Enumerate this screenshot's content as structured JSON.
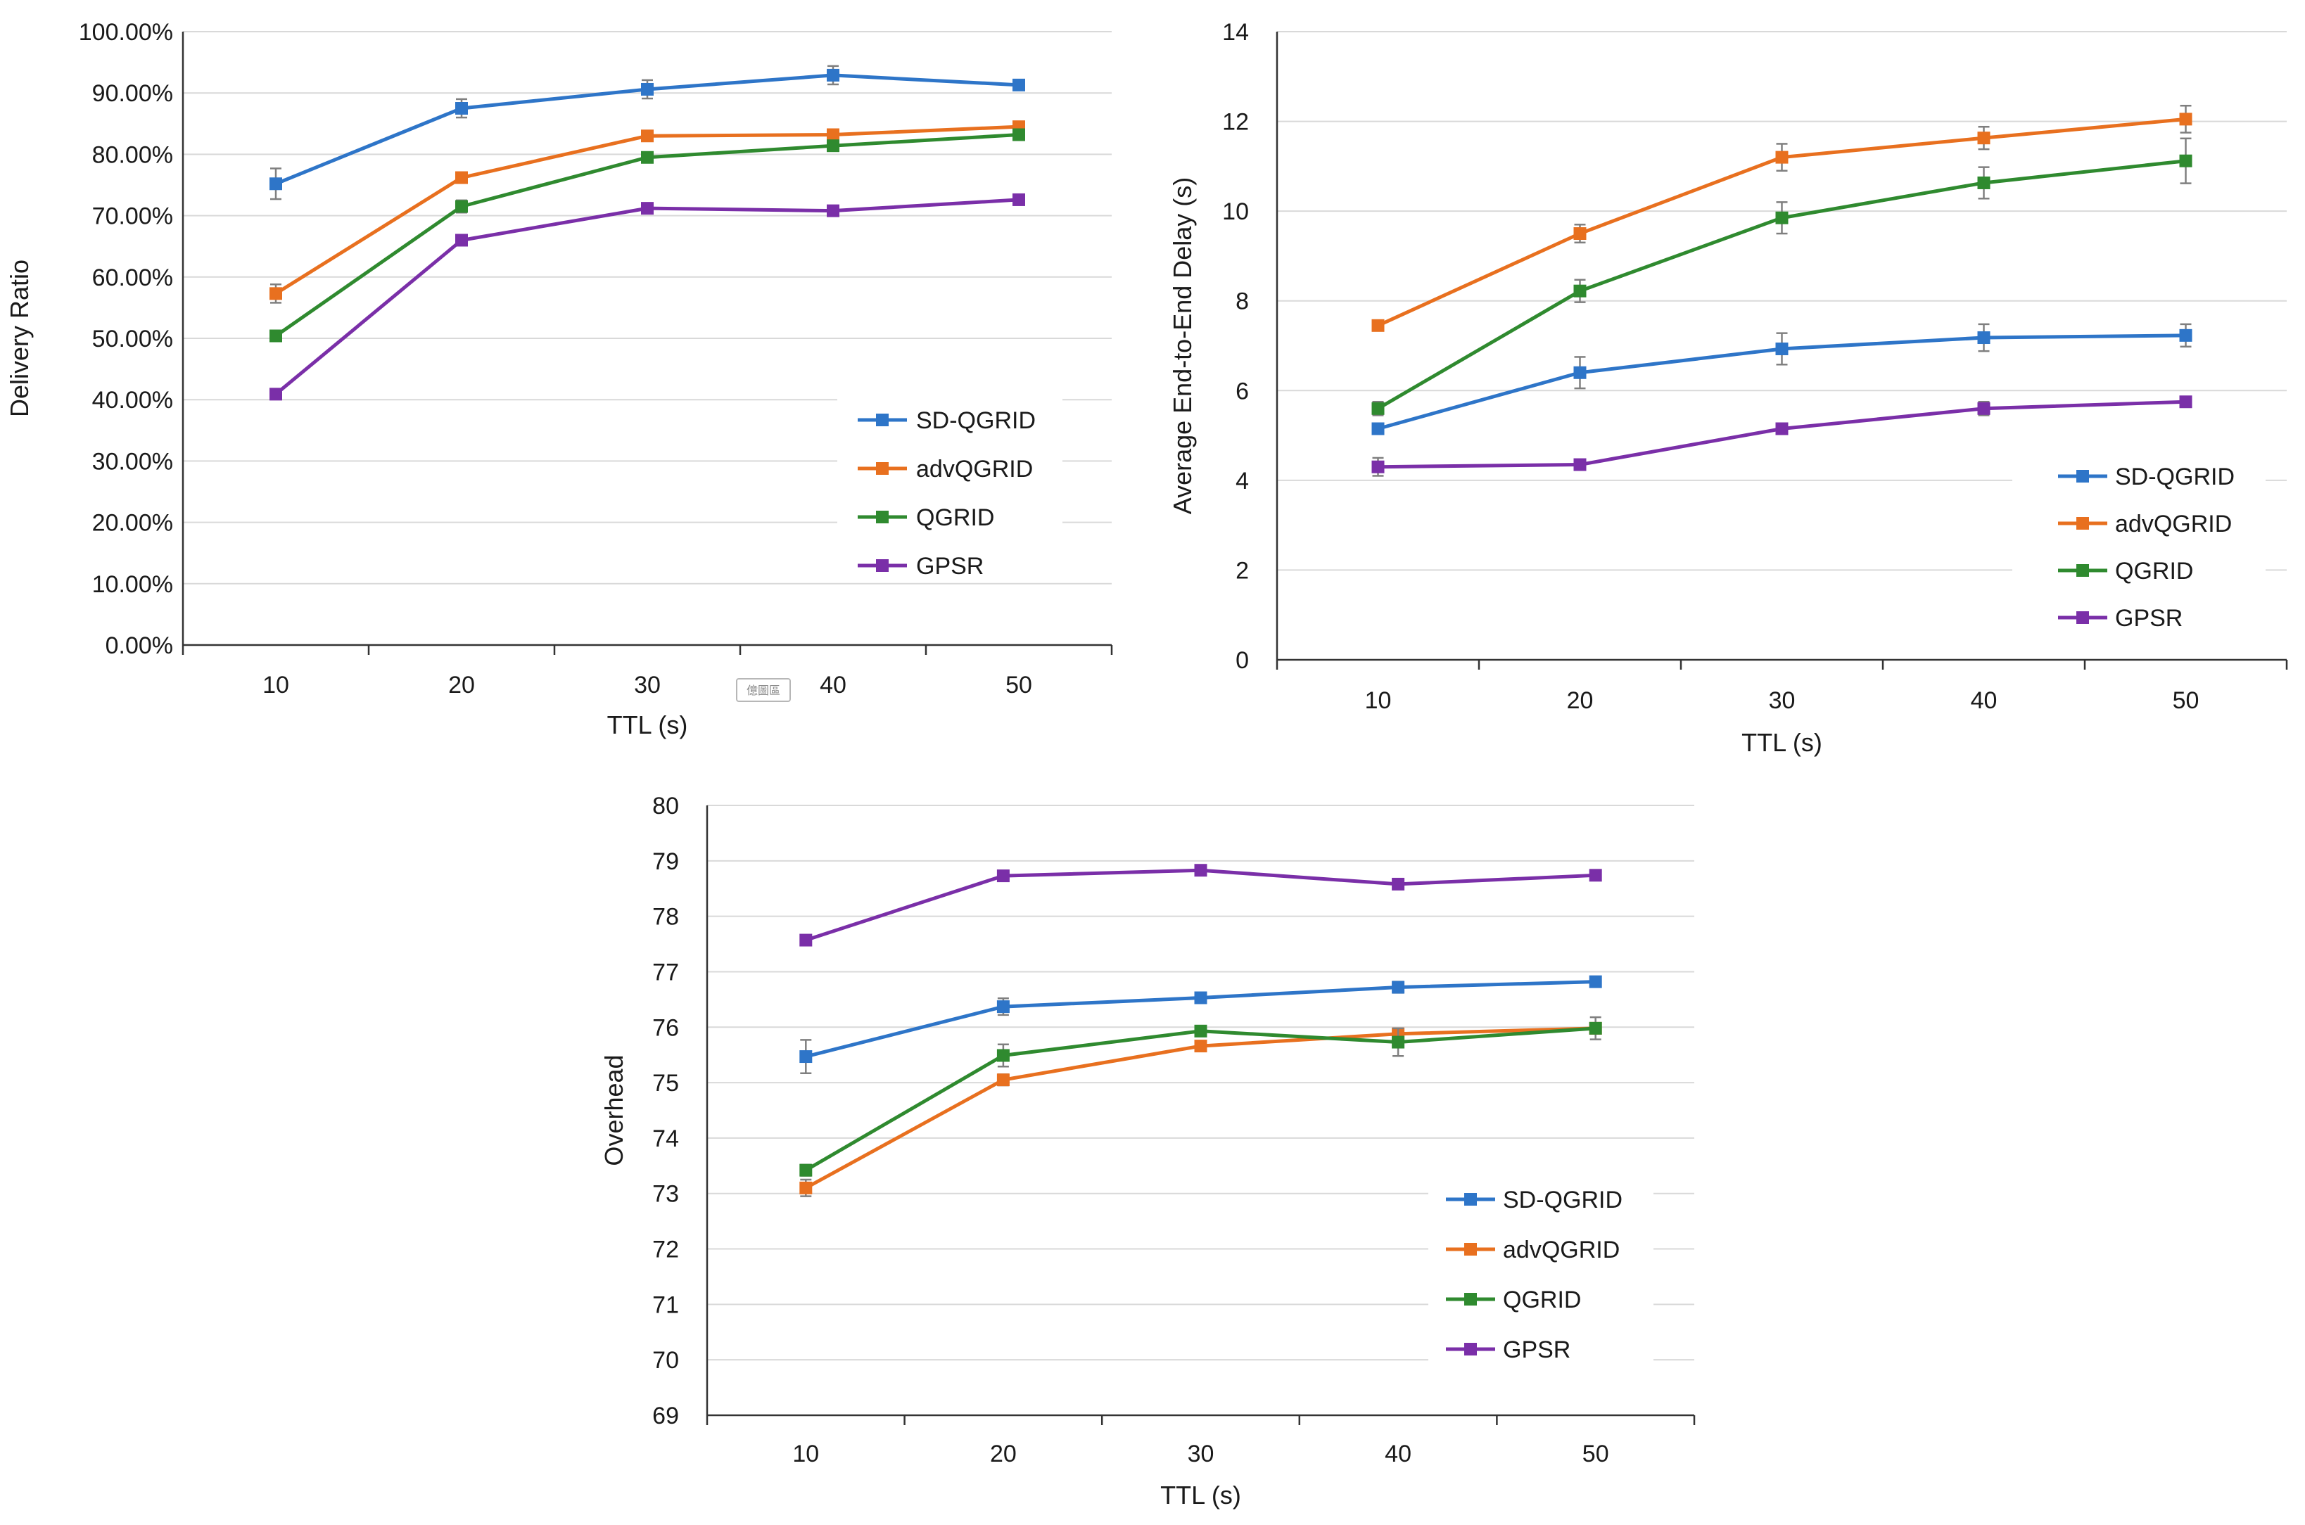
{
  "colors": {
    "SD-QGRID": "#2e75c8",
    "advQGRID": "#e8701f",
    "QGRID": "#2f8a2f",
    "GPSR": "#7a2fa8",
    "grid": "#d9d9d9",
    "axis": "#333333",
    "error_bar": "#7f7f7f"
  },
  "icons": {
    "legend_marker": "square-marker-icon"
  },
  "watermark": "億圖區",
  "chart_data": [
    {
      "type": "line",
      "title": "",
      "xlabel": "TTL (s)",
      "ylabel": "Delivery Ratio",
      "categories": [
        "10",
        "20",
        "30",
        "40",
        "50"
      ],
      "ylim": [
        0,
        100
      ],
      "yticks": [
        "0.00%",
        "10.00%",
        "20.00%",
        "30.00%",
        "40.00%",
        "50.00%",
        "60.00%",
        "70.00%",
        "80.00%",
        "90.00%",
        "100.00%"
      ],
      "grid": true,
      "legend_position": "bottom-right",
      "series": [
        {
          "name": "SD-QGRID",
          "values": [
            75.2,
            87.5,
            90.6,
            92.9,
            91.3
          ],
          "errors": [
            2.5,
            1.5,
            1.5,
            1.5,
            0.5
          ]
        },
        {
          "name": "advQGRID",
          "values": [
            57.3,
            76.2,
            83.0,
            83.2,
            84.5
          ],
          "errors": [
            1.5,
            0.5,
            0.5,
            0.5,
            0.5
          ]
        },
        {
          "name": "QGRID",
          "values": [
            50.4,
            71.5,
            79.5,
            81.4,
            83.2
          ],
          "errors": [
            0.5,
            1.0,
            0.5,
            0.5,
            0.5
          ]
        },
        {
          "name": "GPSR",
          "values": [
            40.9,
            66.0,
            71.2,
            70.8,
            72.6
          ],
          "errors": [
            0.5,
            0.5,
            0.5,
            0.5,
            0.5
          ]
        }
      ]
    },
    {
      "type": "line",
      "title": "",
      "xlabel": "TTL (s)",
      "ylabel": "Average End-to-End Delay (s)",
      "categories": [
        "10",
        "20",
        "30",
        "40",
        "50"
      ],
      "ylim": [
        0,
        14
      ],
      "yticks": [
        "0",
        "2",
        "4",
        "6",
        "8",
        "10",
        "12",
        "14"
      ],
      "grid": true,
      "legend_position": "bottom-right",
      "series": [
        {
          "name": "SD-QGRID",
          "values": [
            5.15,
            6.4,
            6.93,
            7.18,
            7.23
          ],
          "errors": [
            0.1,
            0.35,
            0.35,
            0.3,
            0.25
          ]
        },
        {
          "name": "advQGRID",
          "values": [
            7.45,
            9.5,
            11.2,
            11.63,
            12.05
          ],
          "errors": [
            0.1,
            0.2,
            0.3,
            0.25,
            0.3
          ]
        },
        {
          "name": "QGRID",
          "values": [
            5.6,
            8.22,
            9.85,
            10.63,
            11.12
          ],
          "errors": [
            0.15,
            0.25,
            0.35,
            0.35,
            0.5
          ]
        },
        {
          "name": "GPSR",
          "values": [
            4.3,
            4.35,
            5.15,
            5.6,
            5.75
          ],
          "errors": [
            0.2,
            0.1,
            0.1,
            0.15,
            0.1
          ]
        }
      ]
    },
    {
      "type": "line",
      "title": "",
      "xlabel": "TTL (s)",
      "ylabel": "Overhead",
      "categories": [
        "10",
        "20",
        "30",
        "40",
        "50"
      ],
      "ylim": [
        69,
        80
      ],
      "yticks": [
        "69",
        "70",
        "71",
        "72",
        "73",
        "74",
        "75",
        "76",
        "77",
        "78",
        "79",
        "80"
      ],
      "grid": true,
      "legend_position": "bottom-right",
      "series": [
        {
          "name": "SD-QGRID",
          "values": [
            75.47,
            76.37,
            76.53,
            76.72,
            76.82
          ],
          "errors": [
            0.3,
            0.15,
            0.05,
            0.1,
            0.05
          ]
        },
        {
          "name": "advQGRID",
          "values": [
            73.1,
            75.05,
            75.66,
            75.88,
            75.98
          ],
          "errors": [
            0.15,
            0.1,
            0.05,
            0.1,
            0.05
          ]
        },
        {
          "name": "QGRID",
          "values": [
            73.42,
            75.49,
            75.93,
            75.73,
            75.98
          ],
          "errors": [
            0.1,
            0.2,
            0.05,
            0.25,
            0.2
          ]
        },
        {
          "name": "GPSR",
          "values": [
            77.57,
            78.73,
            78.83,
            78.58,
            78.74
          ],
          "errors": [
            0.05,
            0.05,
            0.05,
            0.05,
            0.05
          ]
        }
      ]
    }
  ]
}
